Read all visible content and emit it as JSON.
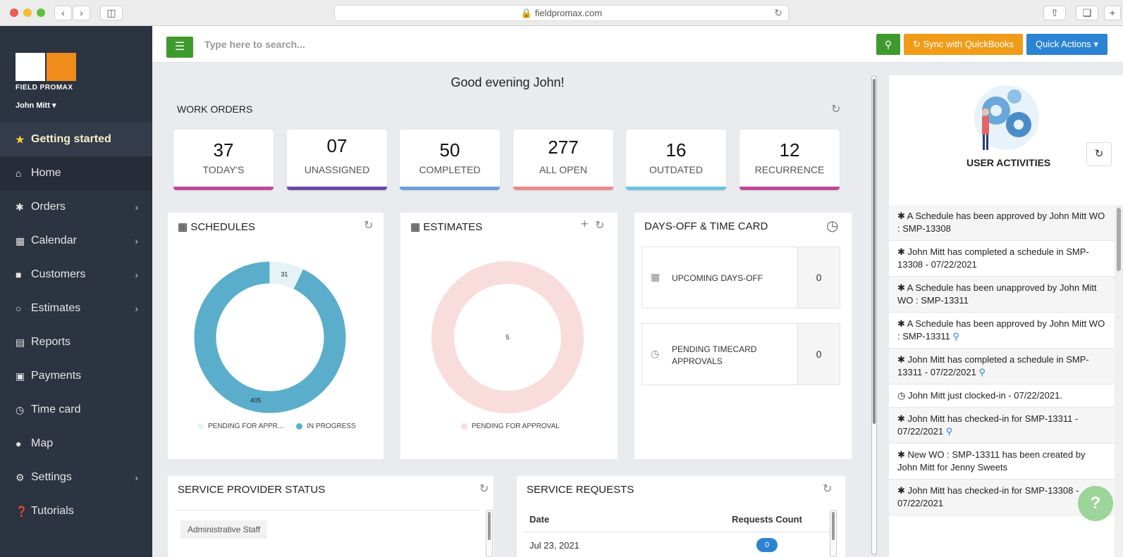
{
  "browser": {
    "url": "fieldpromax.com"
  },
  "sidebar": {
    "logo_text": "FIELD PROMAX",
    "user_name": "John Mitt",
    "items": [
      {
        "label": "Getting started",
        "icon": "star-icon"
      },
      {
        "label": "Home",
        "icon": "home-icon"
      },
      {
        "label": "Orders",
        "icon": "asterisk-icon"
      },
      {
        "label": "Calendar",
        "icon": "calendar-icon"
      },
      {
        "label": "Customers",
        "icon": "customers-icon"
      },
      {
        "label": "Estimates",
        "icon": "circle-icon"
      },
      {
        "label": "Reports",
        "icon": "chart-icon"
      },
      {
        "label": "Payments",
        "icon": "money-icon"
      },
      {
        "label": "Time card",
        "icon": "clock-icon"
      },
      {
        "label": "Map",
        "icon": "map-pin-icon"
      },
      {
        "label": "Settings",
        "icon": "gear-icon"
      },
      {
        "label": "Tutorials",
        "icon": "question-icon"
      }
    ]
  },
  "topbar": {
    "search_placeholder": "Type here to search...",
    "sync_label": "Sync with QuickBooks",
    "quick_actions_label": "Quick Actions"
  },
  "greeting": "Good evening John!",
  "work_orders": {
    "title": "WORK ORDERS",
    "cards": [
      {
        "value": "37",
        "label": "TODAY'S",
        "color": "#c04a97"
      },
      {
        "value": "07",
        "label": "UNASSIGNED",
        "color": "#6a4ba8"
      },
      {
        "value": "50",
        "label": "COMPLETED",
        "color": "#6b9fda"
      },
      {
        "value": "277",
        "label": "ALL OPEN",
        "color": "#ec8a8a"
      },
      {
        "value": "16",
        "label": "OUTDATED",
        "color": "#6cc4df"
      },
      {
        "value": "12",
        "label": "RECURRENCE",
        "color": "#c04a97"
      }
    ]
  },
  "schedules": {
    "title": "SCHEDULES",
    "chart_data": {
      "type": "pie",
      "categories": [
        "PENDING FOR APPR...",
        "IN PROGRESS"
      ],
      "values": [
        31,
        405
      ],
      "colors": [
        "#e3f3f7",
        "#5aaecb"
      ]
    }
  },
  "estimates": {
    "title": "ESTIMATES",
    "chart_data": {
      "type": "pie",
      "categories": [
        "PENDING FOR APPROVAL"
      ],
      "values": [
        5
      ],
      "colors": [
        "#f9dcdc"
      ]
    }
  },
  "days_off": {
    "title": "DAYS-OFF & TIME CARD",
    "upcoming_label": "UPCOMING DAYS-OFF",
    "upcoming_value": "0",
    "pending_label_1": "PENDING TIMECARD",
    "pending_label_2": "APPROVALS",
    "pending_value": "0"
  },
  "service_provider": {
    "title": "SERVICE PROVIDER STATUS",
    "tag": "Administrative Staff"
  },
  "service_requests": {
    "title": "SERVICE REQUESTS",
    "col_date": "Date",
    "col_count": "Requests Count",
    "rows": [
      {
        "date": "Jul 23, 2021",
        "count": "0"
      }
    ]
  },
  "activities": {
    "title": "USER ACTIVITIES",
    "items": [
      {
        "icon": "asterisk-icon",
        "text": "A Schedule has been approved by John Mitt WO : SMP-13308",
        "pin": false
      },
      {
        "icon": "asterisk-icon",
        "text": "John Mitt has completed a schedule in SMP-13308 - 07/22/2021",
        "pin": false
      },
      {
        "icon": "asterisk-icon",
        "text": "A Schedule has been unapproved by John Mitt WO : SMP-13311",
        "pin": false
      },
      {
        "icon": "asterisk-icon",
        "text": "A Schedule has been approved by John Mitt WO : SMP-13311",
        "pin": true
      },
      {
        "icon": "asterisk-icon",
        "text": "John Mitt has completed a schedule in SMP-13311 - 07/22/2021",
        "pin": true
      },
      {
        "icon": "clock-icon",
        "text": "John Mitt just clocked-in - 07/22/2021.",
        "pin": false
      },
      {
        "icon": "asterisk-icon",
        "text": "John Mitt has checked-in for SMP-13311 - 07/22/2021",
        "pin": true
      },
      {
        "icon": "asterisk-icon",
        "text": "New WO : SMP-13311 has been created by John Mitt for Jenny Sweets",
        "pin": false
      },
      {
        "icon": "asterisk-icon",
        "text": "John Mitt has checked-in for SMP-13308 - 07/22/2021",
        "pin": false
      }
    ]
  },
  "help_label": "?"
}
